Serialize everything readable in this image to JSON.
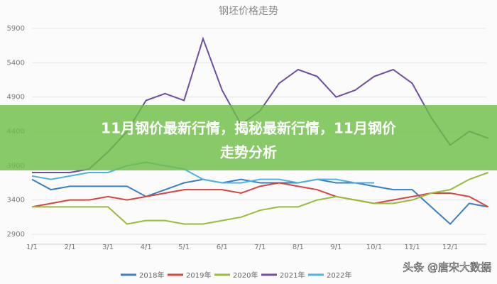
{
  "chart_data": {
    "type": "line",
    "title": "钢坯价格走势",
    "x": [
      1,
      1.5,
      2,
      2.5,
      3,
      3.5,
      4,
      4.5,
      5,
      5.5,
      6,
      6.5,
      7,
      7.5,
      8,
      8.5,
      9,
      9.5,
      10,
      10.5,
      11,
      11.5,
      12,
      12.5,
      13
    ],
    "xlim": [
      1,
      13
    ],
    "xticks": [
      {
        "value": 1,
        "label": "1/1"
      },
      {
        "value": 2,
        "label": "2/1"
      },
      {
        "value": 3,
        "label": "3/1"
      },
      {
        "value": 4,
        "label": "4/1"
      },
      {
        "value": 5,
        "label": "5/1"
      },
      {
        "value": 6,
        "label": "6/1"
      },
      {
        "value": 7,
        "label": "7/1"
      },
      {
        "value": 8,
        "label": "8/1"
      },
      {
        "value": 9,
        "label": "9/1"
      },
      {
        "value": 10,
        "label": "10/1"
      },
      {
        "value": 11,
        "label": "11/1"
      },
      {
        "value": 12,
        "label": "12/1"
      }
    ],
    "ylim": [
      2900,
      5900
    ],
    "yticks": [
      2900,
      3400,
      3900,
      4400,
      4900,
      5400,
      5900
    ],
    "grid": true,
    "series": [
      {
        "name": "2018年",
        "color": "#3a7fc4",
        "values": [
          3700,
          3550,
          3600,
          3600,
          3600,
          3600,
          3450,
          3550,
          3650,
          3700,
          3650,
          3700,
          3650,
          3650,
          3650,
          3700,
          3650,
          3650,
          3600,
          3550,
          3550,
          3300,
          3050,
          3350,
          3300
        ]
      },
      {
        "name": "2019年",
        "color": "#d64541",
        "values": [
          3300,
          3350,
          3400,
          3400,
          3450,
          3400,
          3450,
          3500,
          3550,
          3550,
          3550,
          3500,
          3600,
          3650,
          3600,
          3550,
          3450,
          3400,
          3350,
          3400,
          3450,
          3500,
          3500,
          3450,
          3300
        ]
      },
      {
        "name": "2020年",
        "color": "#9bbb3c",
        "values": [
          3300,
          3300,
          3300,
          3300,
          3300,
          3050,
          3100,
          3100,
          3050,
          3050,
          3100,
          3150,
          3250,
          3300,
          3300,
          3400,
          3450,
          3400,
          3350,
          3350,
          3400,
          3500,
          3550,
          3700,
          3800
        ]
      },
      {
        "name": "2021年",
        "color": "#6f4ea0",
        "values": [
          3800,
          3800,
          3800,
          3850,
          4100,
          4400,
          4850,
          4950,
          4850,
          5750,
          5000,
          4500,
          4700,
          5100,
          5300,
          5200,
          4900,
          5000,
          5200,
          5300,
          5100,
          4600,
          4200,
          4400,
          4300
        ]
      },
      {
        "name": "2022年",
        "color": "#4fb3e0",
        "values": [
          3750,
          3700,
          3750,
          3800,
          3800,
          3900,
          3950,
          3900,
          3850,
          3700,
          3650,
          3650,
          3700,
          3700,
          3650,
          3700,
          3700,
          3650,
          3650,
          null,
          null,
          null,
          null,
          null,
          null
        ]
      }
    ]
  },
  "banner": {
    "lines": [
      "11月钢价最新行情，揭秘最新行情，11月钢价",
      "走势分析"
    ]
  },
  "watermark": "头条 @唐宋大数据"
}
